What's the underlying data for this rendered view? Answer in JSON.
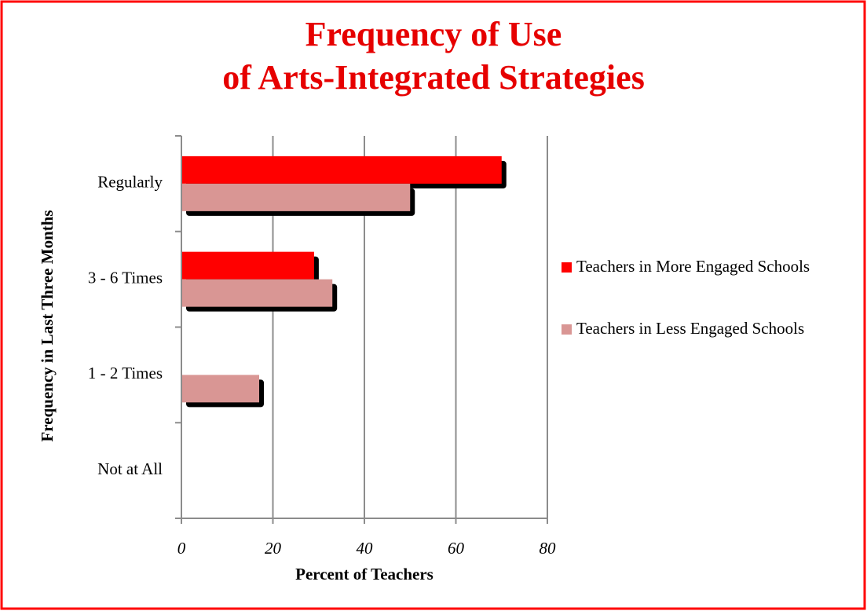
{
  "chart_data": {
    "type": "hbar",
    "title": [
      "Frequency of Use",
      "of Arts-Integrated Strategies"
    ],
    "categories": [
      "Regularly",
      "3 - 6 Times",
      "1 - 2 Times",
      "Not at All"
    ],
    "series": [
      {
        "name": "Teachers in More Engaged Schools",
        "color": "#ff0000",
        "values": [
          70,
          29,
          0,
          0
        ]
      },
      {
        "name": "Teachers in Less Engaged Schools",
        "color": "#d99694",
        "values": [
          50,
          33,
          17,
          0
        ]
      }
    ],
    "xlim": [
      0,
      80
    ],
    "xticks": [
      0,
      20,
      40,
      60,
      80
    ],
    "grid": true,
    "x_label": "Percent of Teachers",
    "y_label": "Frequency in Last Three Months",
    "legend": "right"
  }
}
